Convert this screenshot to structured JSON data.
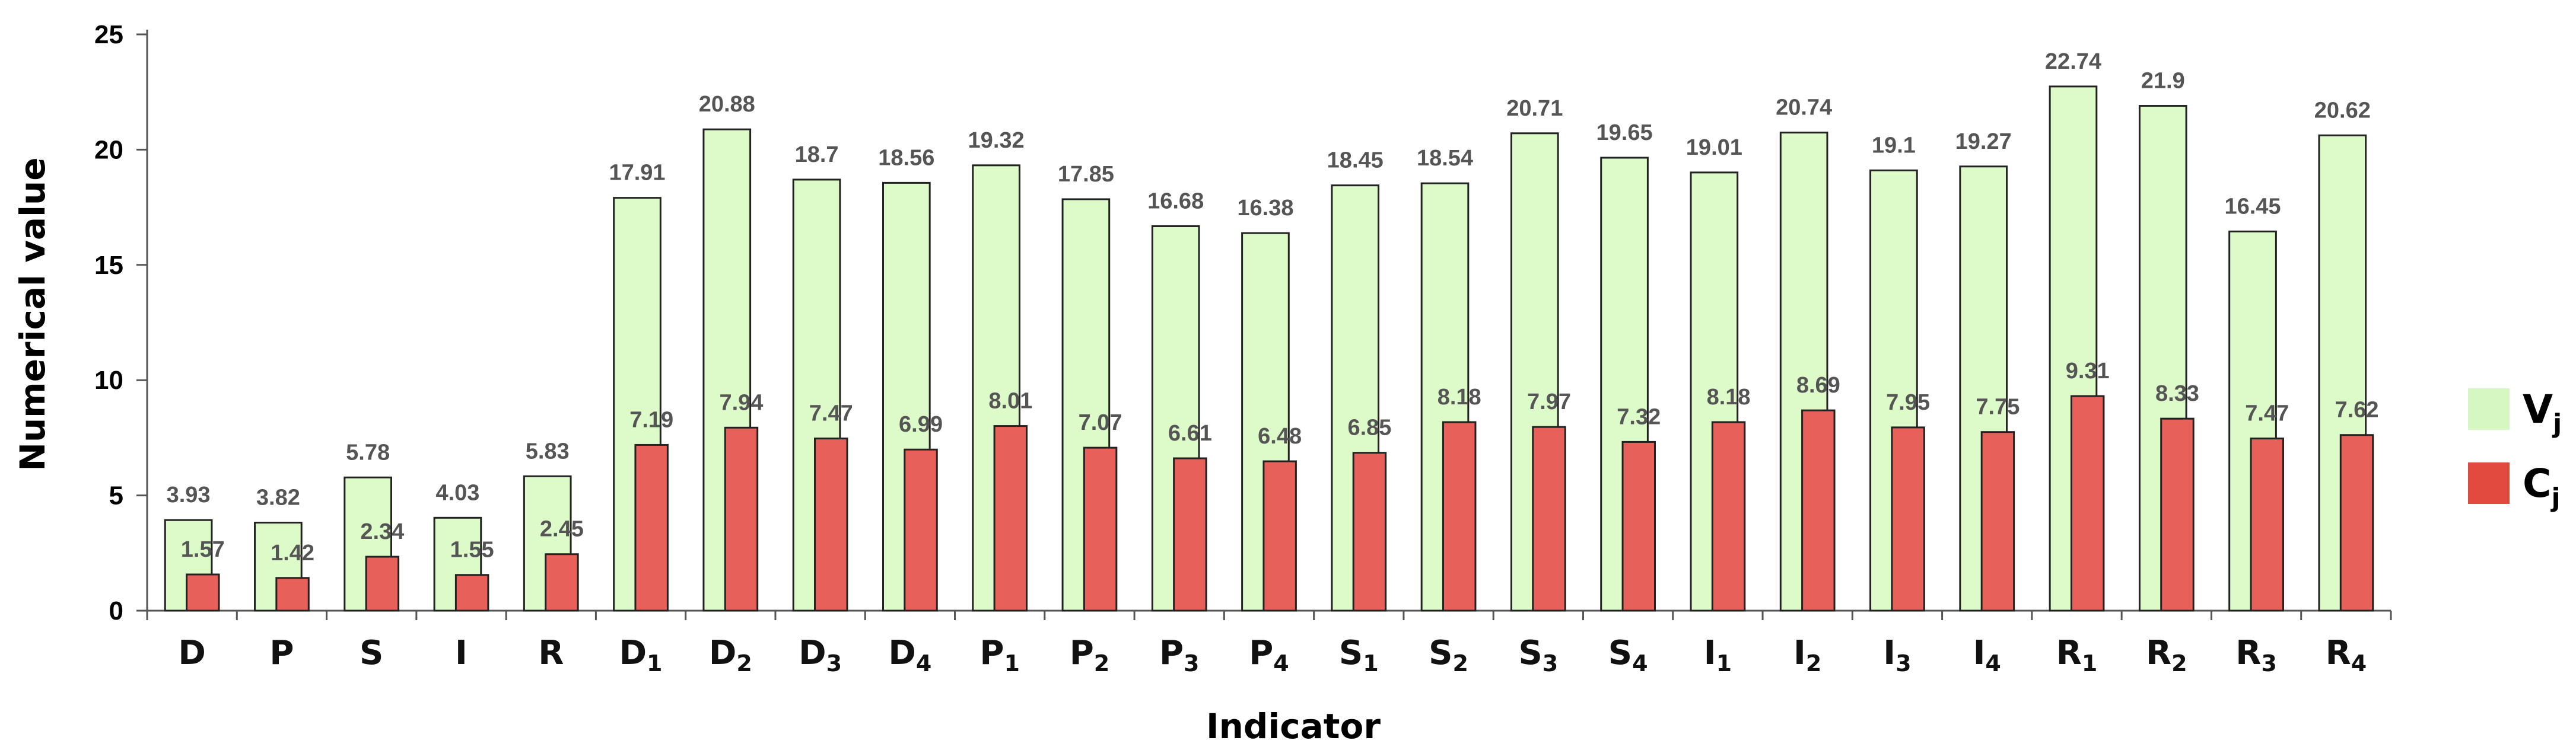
{
  "chart_data": {
    "type": "bar",
    "xlabel": "Indicator",
    "ylabel": "Numerical value",
    "ylim": [
      0,
      25
    ],
    "yticks": [
      0,
      5,
      10,
      15,
      20,
      25
    ],
    "grid": false,
    "legend_position": "right",
    "categories": [
      {
        "base": "D",
        "sub": ""
      },
      {
        "base": "P",
        "sub": ""
      },
      {
        "base": "S",
        "sub": ""
      },
      {
        "base": "I",
        "sub": ""
      },
      {
        "base": "R",
        "sub": ""
      },
      {
        "base": "D",
        "sub": "1"
      },
      {
        "base": "D",
        "sub": "2"
      },
      {
        "base": "D",
        "sub": "3"
      },
      {
        "base": "D",
        "sub": "4"
      },
      {
        "base": "P",
        "sub": "1"
      },
      {
        "base": "P",
        "sub": "2"
      },
      {
        "base": "P",
        "sub": "3"
      },
      {
        "base": "P",
        "sub": "4"
      },
      {
        "base": "S",
        "sub": "1"
      },
      {
        "base": "S",
        "sub": "2"
      },
      {
        "base": "S",
        "sub": "3"
      },
      {
        "base": "S",
        "sub": "4"
      },
      {
        "base": "I",
        "sub": "1"
      },
      {
        "base": "I",
        "sub": "2"
      },
      {
        "base": "I",
        "sub": "3"
      },
      {
        "base": "I",
        "sub": "4"
      },
      {
        "base": "R",
        "sub": "1"
      },
      {
        "base": "R",
        "sub": "2"
      },
      {
        "base": "R",
        "sub": "3"
      },
      {
        "base": "R",
        "sub": "4"
      }
    ],
    "series": [
      {
        "name": "V",
        "name_sub": "j",
        "color": "#dcfbc9",
        "values": [
          3.93,
          3.82,
          5.78,
          4.03,
          5.83,
          17.91,
          20.88,
          18.7,
          18.56,
          19.32,
          17.85,
          16.68,
          16.38,
          18.45,
          18.54,
          20.71,
          19.65,
          19.01,
          20.74,
          19.1,
          19.27,
          22.74,
          21.9,
          16.45,
          20.62
        ]
      },
      {
        "name": "C",
        "name_sub": "j",
        "color": "#e8605a",
        "values": [
          1.57,
          1.42,
          2.34,
          1.55,
          2.45,
          7.19,
          7.94,
          7.47,
          6.99,
          8.01,
          7.07,
          6.61,
          6.48,
          6.85,
          8.18,
          7.97,
          7.32,
          8.18,
          8.69,
          7.95,
          7.75,
          9.31,
          8.33,
          7.47,
          7.62
        ]
      }
    ],
    "legend_colors": {
      "V": "#d6f7c2",
      "C": "#e04a3f"
    }
  }
}
